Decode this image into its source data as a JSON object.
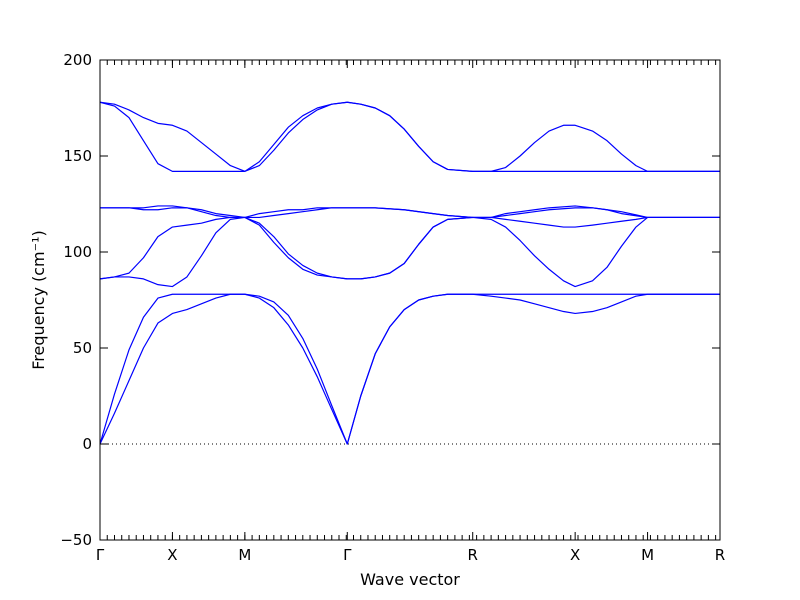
{
  "chart_data": {
    "type": "line",
    "title": "",
    "xlabel": "Wave vector",
    "ylabel": "Frequency (cm⁻¹)",
    "ylim": [
      -50,
      200
    ],
    "yticks": [
      -50,
      0,
      50,
      100,
      150,
      200
    ],
    "ytick_labels": [
      "−50",
      "0",
      "50",
      "100",
      "150",
      "200"
    ],
    "x_kpoints": [
      {
        "label": "Γ",
        "x": 0.0
      },
      {
        "label": "X",
        "x": 0.5
      },
      {
        "label": "M",
        "x": 1.0
      },
      {
        "label": "Γ",
        "x": 1.7071
      },
      {
        "label": "R",
        "x": 2.5731
      },
      {
        "label": "X",
        "x": 3.2802
      },
      {
        "label": "M",
        "x": 3.7802
      },
      {
        "label": "R",
        "x": 4.2802
      }
    ],
    "xlim": [
      0,
      4.2802
    ],
    "zero_line": {
      "y": 0,
      "style": "dotted"
    },
    "line_color": "#0000ff",
    "grid": false,
    "series": [
      {
        "points": [
          [
            0,
            0
          ],
          [
            0.1,
            26
          ],
          [
            0.2,
            49
          ],
          [
            0.3,
            66
          ],
          [
            0.4,
            76
          ],
          [
            0.5,
            78
          ],
          [
            0.6,
            78
          ],
          [
            0.7,
            78
          ],
          [
            0.8,
            78
          ],
          [
            0.9,
            78
          ],
          [
            1.0,
            78
          ],
          [
            1.1,
            77
          ],
          [
            1.2,
            74
          ],
          [
            1.3,
            67
          ],
          [
            1.4,
            55
          ],
          [
            1.5,
            39
          ],
          [
            1.6,
            20
          ],
          [
            1.7071,
            0
          ],
          [
            1.8,
            25
          ],
          [
            1.9,
            47
          ],
          [
            2.0,
            61
          ],
          [
            2.1,
            70
          ],
          [
            2.2,
            75
          ],
          [
            2.3,
            77
          ],
          [
            2.4,
            78
          ],
          [
            2.5731,
            78
          ],
          [
            2.7,
            78
          ],
          [
            2.9,
            78
          ],
          [
            3.1,
            78
          ],
          [
            3.2802,
            78
          ],
          [
            3.5,
            78
          ],
          [
            3.7802,
            78
          ],
          [
            4.0,
            78
          ],
          [
            4.2802,
            78
          ]
        ]
      },
      {
        "points": [
          [
            0,
            0
          ],
          [
            0.1,
            16
          ],
          [
            0.2,
            33
          ],
          [
            0.3,
            50
          ],
          [
            0.4,
            63
          ],
          [
            0.5,
            68
          ],
          [
            0.6,
            70
          ],
          [
            0.7,
            73
          ],
          [
            0.8,
            76
          ],
          [
            0.9,
            78
          ],
          [
            1.0,
            78
          ],
          [
            1.1,
            76
          ],
          [
            1.2,
            71
          ],
          [
            1.3,
            62
          ],
          [
            1.4,
            50
          ],
          [
            1.5,
            35
          ],
          [
            1.6,
            18
          ],
          [
            1.7071,
            0
          ],
          [
            1.8,
            25
          ],
          [
            1.9,
            47
          ],
          [
            2.0,
            61
          ],
          [
            2.1,
            70
          ],
          [
            2.2,
            75
          ],
          [
            2.3,
            77
          ],
          [
            2.4,
            78
          ],
          [
            2.5731,
            78
          ],
          [
            2.7,
            77
          ],
          [
            2.8,
            76
          ],
          [
            2.9,
            75
          ],
          [
            3.0,
            73
          ],
          [
            3.1,
            71
          ],
          [
            3.2,
            69
          ],
          [
            3.2802,
            68
          ],
          [
            3.4,
            69
          ],
          [
            3.5,
            71
          ],
          [
            3.6,
            74
          ],
          [
            3.7,
            77
          ],
          [
            3.7802,
            78
          ],
          [
            4.0,
            78
          ],
          [
            4.2802,
            78
          ]
        ]
      },
      {
        "points": [
          [
            0,
            86
          ],
          [
            0.1,
            87
          ],
          [
            0.2,
            87
          ],
          [
            0.3,
            86
          ],
          [
            0.4,
            83
          ],
          [
            0.5,
            82
          ],
          [
            0.6,
            87
          ],
          [
            0.7,
            98
          ],
          [
            0.8,
            110
          ],
          [
            0.9,
            117
          ],
          [
            1.0,
            118
          ],
          [
            1.1,
            115
          ],
          [
            1.2,
            108
          ],
          [
            1.3,
            99
          ],
          [
            1.4,
            93
          ],
          [
            1.5,
            89
          ],
          [
            1.6,
            87
          ],
          [
            1.7071,
            86
          ],
          [
            1.8,
            86
          ],
          [
            1.9,
            87
          ],
          [
            2.0,
            89
          ],
          [
            2.1,
            94
          ],
          [
            2.2,
            104
          ],
          [
            2.3,
            113
          ],
          [
            2.4,
            117
          ],
          [
            2.5731,
            118
          ],
          [
            2.7,
            117
          ],
          [
            2.8,
            113
          ],
          [
            2.9,
            106
          ],
          [
            3.0,
            98
          ],
          [
            3.1,
            91
          ],
          [
            3.2,
            85
          ],
          [
            3.2802,
            82
          ],
          [
            3.4,
            85
          ],
          [
            3.5,
            92
          ],
          [
            3.6,
            103
          ],
          [
            3.7,
            113
          ],
          [
            3.7802,
            118
          ],
          [
            4.0,
            118
          ],
          [
            4.2802,
            118
          ]
        ]
      },
      {
        "points": [
          [
            0,
            86
          ],
          [
            0.1,
            87
          ],
          [
            0.2,
            89
          ],
          [
            0.3,
            97
          ],
          [
            0.4,
            108
          ],
          [
            0.5,
            113
          ],
          [
            0.6,
            114
          ],
          [
            0.7,
            115
          ],
          [
            0.8,
            117
          ],
          [
            0.9,
            118
          ],
          [
            1.0,
            118
          ],
          [
            1.1,
            114
          ],
          [
            1.2,
            105
          ],
          [
            1.3,
            97
          ],
          [
            1.4,
            91
          ],
          [
            1.5,
            88
          ],
          [
            1.6,
            87
          ],
          [
            1.7071,
            86
          ],
          [
            1.8,
            86
          ],
          [
            1.9,
            87
          ],
          [
            2.0,
            89
          ],
          [
            2.1,
            94
          ],
          [
            2.2,
            104
          ],
          [
            2.3,
            113
          ],
          [
            2.4,
            117
          ],
          [
            2.5731,
            118
          ],
          [
            2.7,
            118
          ],
          [
            2.8,
            117
          ],
          [
            2.9,
            116
          ],
          [
            3.0,
            115
          ],
          [
            3.1,
            114
          ],
          [
            3.2,
            113
          ],
          [
            3.2802,
            113
          ],
          [
            3.4,
            114
          ],
          [
            3.5,
            115
          ],
          [
            3.6,
            116
          ],
          [
            3.7,
            117
          ],
          [
            3.7802,
            118
          ],
          [
            4.0,
            118
          ],
          [
            4.2802,
            118
          ]
        ]
      },
      {
        "points": [
          [
            0,
            123
          ],
          [
            0.1,
            123
          ],
          [
            0.2,
            123
          ],
          [
            0.3,
            123
          ],
          [
            0.4,
            124
          ],
          [
            0.5,
            124
          ],
          [
            0.6,
            123
          ],
          [
            0.7,
            121
          ],
          [
            0.8,
            119
          ],
          [
            0.9,
            118
          ],
          [
            1.0,
            118
          ],
          [
            1.1,
            120
          ],
          [
            1.2,
            121
          ],
          [
            1.3,
            122
          ],
          [
            1.4,
            122
          ],
          [
            1.5,
            123
          ],
          [
            1.6,
            123
          ],
          [
            1.7071,
            123
          ],
          [
            1.9,
            123
          ],
          [
            2.1,
            122
          ],
          [
            2.3,
            120
          ],
          [
            2.4,
            119
          ],
          [
            2.5731,
            118
          ],
          [
            2.7,
            118
          ],
          [
            2.8,
            120
          ],
          [
            2.9,
            121
          ],
          [
            3.0,
            122
          ],
          [
            3.1,
            123
          ],
          [
            3.2802,
            124
          ],
          [
            3.4,
            123
          ],
          [
            3.5,
            122
          ],
          [
            3.6,
            120
          ],
          [
            3.7802,
            118
          ],
          [
            4.0,
            118
          ],
          [
            4.2802,
            118
          ]
        ]
      },
      {
        "points": [
          [
            0,
            123
          ],
          [
            0.1,
            123
          ],
          [
            0.2,
            123
          ],
          [
            0.3,
            122
          ],
          [
            0.4,
            122
          ],
          [
            0.5,
            123
          ],
          [
            0.6,
            123
          ],
          [
            0.7,
            122
          ],
          [
            0.8,
            120
          ],
          [
            0.9,
            119
          ],
          [
            1.0,
            118
          ],
          [
            1.1,
            118
          ],
          [
            1.2,
            119
          ],
          [
            1.3,
            120
          ],
          [
            1.4,
            121
          ],
          [
            1.5,
            122
          ],
          [
            1.6,
            123
          ],
          [
            1.7071,
            123
          ],
          [
            1.9,
            123
          ],
          [
            2.1,
            122
          ],
          [
            2.3,
            120
          ],
          [
            2.4,
            119
          ],
          [
            2.5731,
            118
          ],
          [
            2.7,
            118
          ],
          [
            2.8,
            119
          ],
          [
            2.9,
            120
          ],
          [
            3.0,
            121
          ],
          [
            3.1,
            122
          ],
          [
            3.2802,
            123
          ],
          [
            3.4,
            123
          ],
          [
            3.5,
            122
          ],
          [
            3.6,
            121
          ],
          [
            3.7802,
            118
          ],
          [
            4.0,
            118
          ],
          [
            4.2802,
            118
          ]
        ]
      },
      {
        "points": [
          [
            0,
            178
          ],
          [
            0.1,
            177
          ],
          [
            0.2,
            174
          ],
          [
            0.3,
            170
          ],
          [
            0.4,
            167
          ],
          [
            0.5,
            166
          ],
          [
            0.6,
            163
          ],
          [
            0.7,
            157
          ],
          [
            0.8,
            151
          ],
          [
            0.9,
            145
          ],
          [
            1.0,
            142
          ],
          [
            1.1,
            147
          ],
          [
            1.2,
            156
          ],
          [
            1.3,
            165
          ],
          [
            1.4,
            171
          ],
          [
            1.5,
            175
          ],
          [
            1.6,
            177
          ],
          [
            1.7071,
            178
          ],
          [
            1.8,
            177
          ],
          [
            1.9,
            175
          ],
          [
            2.0,
            171
          ],
          [
            2.1,
            164
          ],
          [
            2.2,
            155
          ],
          [
            2.3,
            147
          ],
          [
            2.4,
            143
          ],
          [
            2.5731,
            142
          ],
          [
            2.7,
            142
          ],
          [
            2.8,
            144
          ],
          [
            2.9,
            150
          ],
          [
            3.0,
            157
          ],
          [
            3.1,
            163
          ],
          [
            3.2,
            166
          ],
          [
            3.2802,
            166
          ],
          [
            3.4,
            163
          ],
          [
            3.5,
            158
          ],
          [
            3.6,
            151
          ],
          [
            3.7,
            145
          ],
          [
            3.7802,
            142
          ],
          [
            4.0,
            142
          ],
          [
            4.2802,
            142
          ]
        ]
      },
      {
        "points": [
          [
            0,
            178
          ],
          [
            0.1,
            176
          ],
          [
            0.2,
            170
          ],
          [
            0.3,
            158
          ],
          [
            0.4,
            146
          ],
          [
            0.5,
            142
          ],
          [
            0.6,
            142
          ],
          [
            0.7,
            142
          ],
          [
            0.8,
            142
          ],
          [
            0.9,
            142
          ],
          [
            1.0,
            142
          ],
          [
            1.1,
            145
          ],
          [
            1.2,
            153
          ],
          [
            1.3,
            162
          ],
          [
            1.4,
            169
          ],
          [
            1.5,
            174
          ],
          [
            1.6,
            177
          ],
          [
            1.7071,
            178
          ],
          [
            1.8,
            177
          ],
          [
            1.9,
            175
          ],
          [
            2.0,
            171
          ],
          [
            2.1,
            164
          ],
          [
            2.2,
            155
          ],
          [
            2.3,
            147
          ],
          [
            2.4,
            143
          ],
          [
            2.5731,
            142
          ],
          [
            2.7,
            142
          ],
          [
            2.9,
            142
          ],
          [
            3.1,
            142
          ],
          [
            3.2802,
            142
          ],
          [
            3.5,
            142
          ],
          [
            3.7802,
            142
          ],
          [
            4.0,
            142
          ],
          [
            4.2802,
            142
          ]
        ]
      }
    ]
  }
}
